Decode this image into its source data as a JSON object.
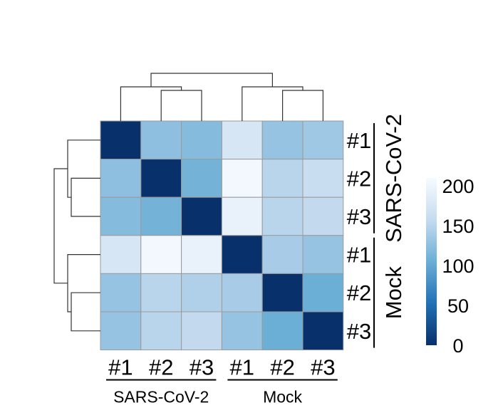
{
  "chart_data": {
    "type": "heatmap",
    "title": "",
    "rows": [
      {
        "label": "#1",
        "group": "SARS-CoV-2"
      },
      {
        "label": "#2",
        "group": "SARS-CoV-2"
      },
      {
        "label": "#3",
        "group": "SARS-CoV-2"
      },
      {
        "label": "#1",
        "group": "Mock"
      },
      {
        "label": "#2",
        "group": "Mock"
      },
      {
        "label": "#3",
        "group": "Mock"
      }
    ],
    "columns": [
      {
        "label": "#1",
        "group": "SARS-CoV-2"
      },
      {
        "label": "#2",
        "group": "SARS-CoV-2"
      },
      {
        "label": "#3",
        "group": "SARS-CoV-2"
      },
      {
        "label": "#1",
        "group": "Mock"
      },
      {
        "label": "#2",
        "group": "Mock"
      },
      {
        "label": "#3",
        "group": "Mock"
      }
    ],
    "row_groups": [
      "SARS-CoV-2",
      "Mock"
    ],
    "column_groups": [
      "SARS-CoV-2",
      "Mock"
    ],
    "values": [
      [
        0,
        125,
        120,
        175,
        130,
        135
      ],
      [
        125,
        0,
        110,
        205,
        150,
        160
      ],
      [
        120,
        110,
        0,
        195,
        150,
        155
      ],
      [
        175,
        205,
        195,
        0,
        140,
        130
      ],
      [
        130,
        150,
        145,
        140,
        0,
        105
      ],
      [
        130,
        150,
        155,
        130,
        105,
        0
      ]
    ],
    "colorbar": {
      "min": 0,
      "max": 210,
      "ticks": [
        0,
        50,
        100,
        150,
        200
      ],
      "colors": [
        "#08306b",
        "#2171b5",
        "#6baed6",
        "#c6dbef",
        "#f7fbff"
      ]
    },
    "dendrogram_rows": true,
    "dendrogram_columns": true,
    "grid": true
  }
}
